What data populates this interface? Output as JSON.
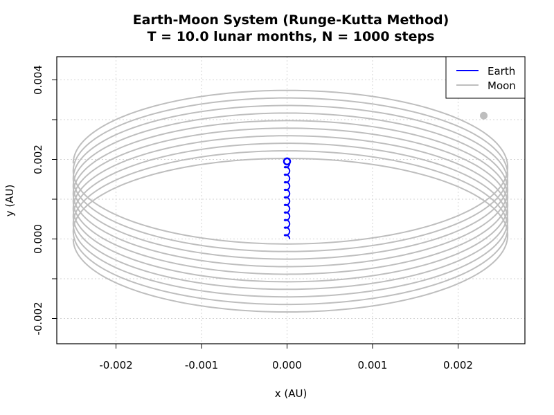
{
  "chart_data": {
    "type": "line",
    "title": "Earth-Moon System (Runge-Kutta Method)",
    "subtitle": "T = 10.0 lunar months, N = 1000 steps",
    "xlabel": "x (AU)",
    "ylabel": "y (AU)",
    "xlim": [
      -0.0027,
      0.0027
    ],
    "ylim": [
      -0.00265,
      0.0045
    ],
    "x_ticks": [
      -0.002,
      -0.001,
      0.0,
      0.001,
      0.002
    ],
    "x_tick_labels": [
      "-0.002",
      "-0.001",
      "0.000",
      "0.001",
      "0.002"
    ],
    "y_ticks": [
      -0.002,
      -0.001,
      0.0,
      0.001,
      0.002,
      0.003,
      0.004
    ],
    "y_tick_labels": [
      "-0.002",
      "",
      "0.000",
      "",
      "0.002",
      "",
      "0.004"
    ],
    "grid": true,
    "legend_position": "top-right",
    "series": [
      {
        "name": "Earth",
        "color": "#0000ff",
        "x": [
          0.0,
          0.0,
          0.0,
          0.0,
          0.0,
          0.0,
          0.0,
          0.0,
          0.0,
          0.0,
          0.0
        ],
        "y": [
          0.0,
          0.0002,
          0.0004,
          0.0006,
          0.0008,
          0.001,
          0.0012,
          0.0014,
          0.0016,
          0.0018,
          0.0019
        ],
        "loop_radius": 3e-05,
        "end_marker": [
          0.0,
          0.00195
        ]
      },
      {
        "name": "Moon",
        "color": "#bebebe",
        "semi_axis_x": 0.00254,
        "semi_axis_y": 0.00214,
        "center_x": 4e-05,
        "start_center_y": 0.0,
        "end_center_y": 0.0019,
        "revolutions": 10,
        "end_marker": [
          0.0023,
          0.0031
        ]
      }
    ]
  }
}
